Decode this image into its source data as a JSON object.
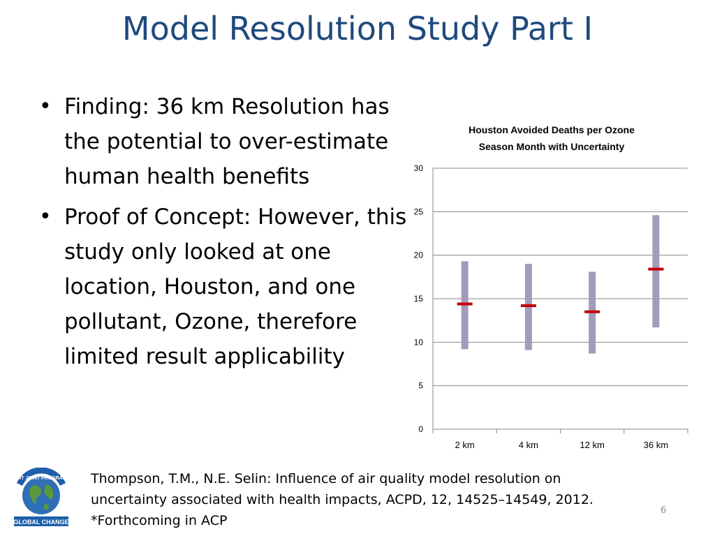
{
  "slide": {
    "title": "Model Resolution Study Part I",
    "slide_number": "6"
  },
  "bullets": [
    "Finding: 36 km Resolution has the potential to over-estimate human health benefits",
    "Proof of Concept: However, this study only looked at one location, Houston, and one pollutant, Ozone, therefore limited result applicability"
  ],
  "logo": {
    "text_top": "MIT JOINT PROGRAM",
    "text_bottom": "GLOBAL CHANGE",
    "icon": "globe-icon"
  },
  "citation": {
    "line1": "Thompson, T.M., N.E. Selin: Influence of air quality model resolution on",
    "line2": "uncertainty associated with health impacts, ACPD, 12, 14525–14549, 2012.",
    "line3": "*Forthcoming in ACP"
  },
  "colors": {
    "title": "#1f497d",
    "bar": "#a49abb",
    "mean": "#c00000",
    "grid": "#878787"
  },
  "chart_data": {
    "type": "bar",
    "title_line1": "Houston Avoided Deaths per Ozone",
    "title_line2": "Season Month with Uncertainty",
    "categories": [
      "2 km",
      "4 km",
      "12 km",
      "36 km"
    ],
    "low": [
      9.2,
      9.1,
      8.7,
      11.7
    ],
    "high": [
      19.3,
      19.0,
      18.1,
      24.6
    ],
    "mean": [
      14.4,
      14.2,
      13.5,
      18.4
    ],
    "ylim": [
      0,
      30
    ],
    "yticks": [
      "0",
      "5",
      "10",
      "15",
      "20",
      "25",
      "30"
    ],
    "grid": true,
    "legend": "none"
  }
}
